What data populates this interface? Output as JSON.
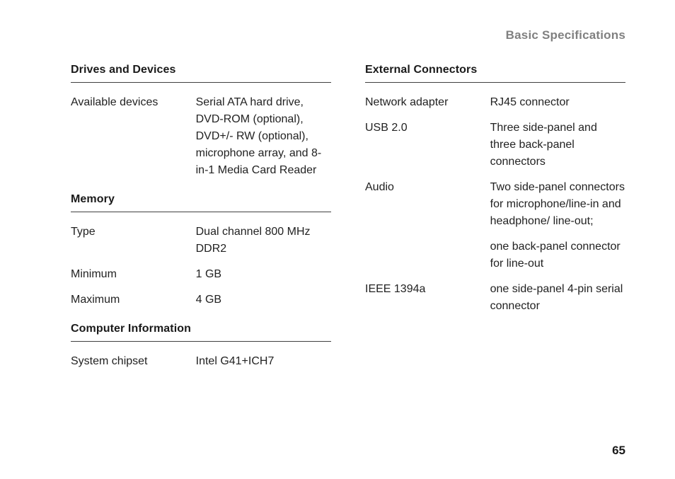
{
  "header": "Basic Specifications",
  "page_number": "65",
  "left": {
    "sections": [
      {
        "title": "Drives and Devices",
        "rows": [
          {
            "label": "Available devices",
            "value": "Serial ATA hard drive, DVD-ROM (optional), DVD+/- RW (optional), microphone array, and 8-in-1 Media Card Reader"
          }
        ]
      },
      {
        "title": "Memory",
        "rows": [
          {
            "label": "Type",
            "value": "Dual channel 800 MHz DDR2"
          },
          {
            "label": "Minimum",
            "value": "1 GB"
          },
          {
            "label": "Maximum",
            "value": "4 GB"
          }
        ]
      },
      {
        "title": "Computer Information",
        "rows": [
          {
            "label": "System chipset",
            "value": "Intel G41+ICH7"
          }
        ]
      }
    ]
  },
  "right": {
    "sections": [
      {
        "title": "External Connectors",
        "rows": [
          {
            "label": "Network adapter",
            "value": "RJ45 connector"
          },
          {
            "label": "USB 2.0",
            "value": "Three side-panel and three back-panel connectors"
          },
          {
            "label": "Audio",
            "value": "Two side-panel connectors for microphone/line-in and headphone/ line-out;"
          },
          {
            "label": "",
            "value": "one back-panel connector for line-out"
          },
          {
            "label": "IEEE 1394a",
            "value": "one side-panel 4-pin serial connector"
          }
        ]
      }
    ]
  },
  "style": {
    "header_color": "#808080",
    "text_color": "#222222",
    "heading_color": "#1a1a1a",
    "rule_color": "#404040",
    "background_color": "#ffffff",
    "body_fontsize": 16,
    "heading_fontsize": 16,
    "header_fontsize": 17
  }
}
